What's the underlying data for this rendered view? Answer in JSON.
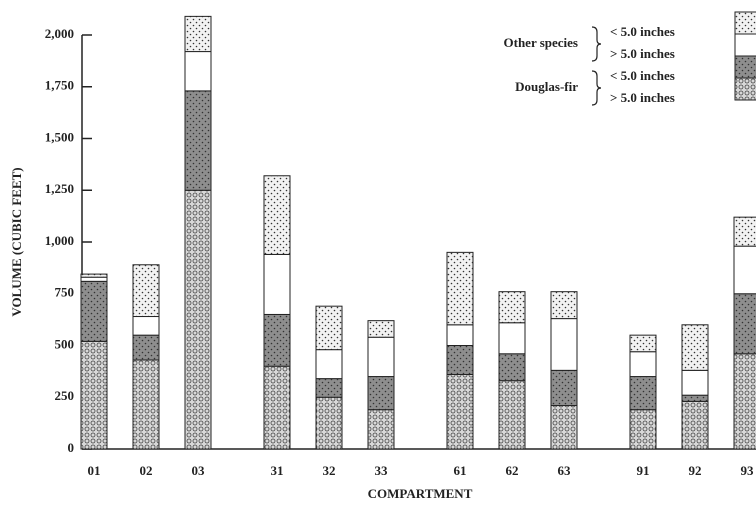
{
  "chart_data": {
    "type": "stacked_bar",
    "y_label": "VOLUME (CUBIC FEET)",
    "x_label": "COMPARTMENT",
    "categories": [
      "01",
      "02",
      "03",
      "31",
      "32",
      "33",
      "61",
      "62",
      "63",
      "91",
      "92",
      "93"
    ],
    "series": [
      {
        "name": "> 5.0 inches",
        "group": "Douglas-fir",
        "color": "#d8d8d8",
        "pattern": "circles",
        "values": [
          520,
          430,
          1250,
          400,
          250,
          190,
          360,
          330,
          210,
          190,
          230,
          460
        ]
      },
      {
        "name": "< 5.0 inches",
        "group": "Douglas-fir",
        "color": "#8e8e8e",
        "pattern": "stipple",
        "values": [
          290,
          120,
          480,
          250,
          90,
          160,
          140,
          130,
          170,
          160,
          30,
          290
        ]
      },
      {
        "name": "> 5.0 inches",
        "group": "Other species",
        "color": "#ffffff",
        "pattern": "none",
        "values": [
          20,
          90,
          190,
          290,
          140,
          190,
          100,
          150,
          250,
          120,
          120,
          230
        ]
      },
      {
        "name": "< 5.0 inches",
        "group": "Other species",
        "color": "#f2f2f2",
        "pattern": "stipple",
        "values": [
          15,
          250,
          170,
          380,
          210,
          80,
          350,
          150,
          130,
          80,
          220,
          140
        ]
      }
    ],
    "ylim": [
      0,
      2000
    ],
    "yticks": [
      0,
      250,
      500,
      750,
      {
        "value": 1000,
        "label": "1,000"
      },
      {
        "value": 1250,
        "label": "1,250"
      },
      {
        "value": 1500,
        "label": "1,500"
      },
      {
        "value": 1750,
        "label": "1,750"
      },
      {
        "value": 2000,
        "label": "2,000"
      }
    ],
    "grid": false
  }
}
